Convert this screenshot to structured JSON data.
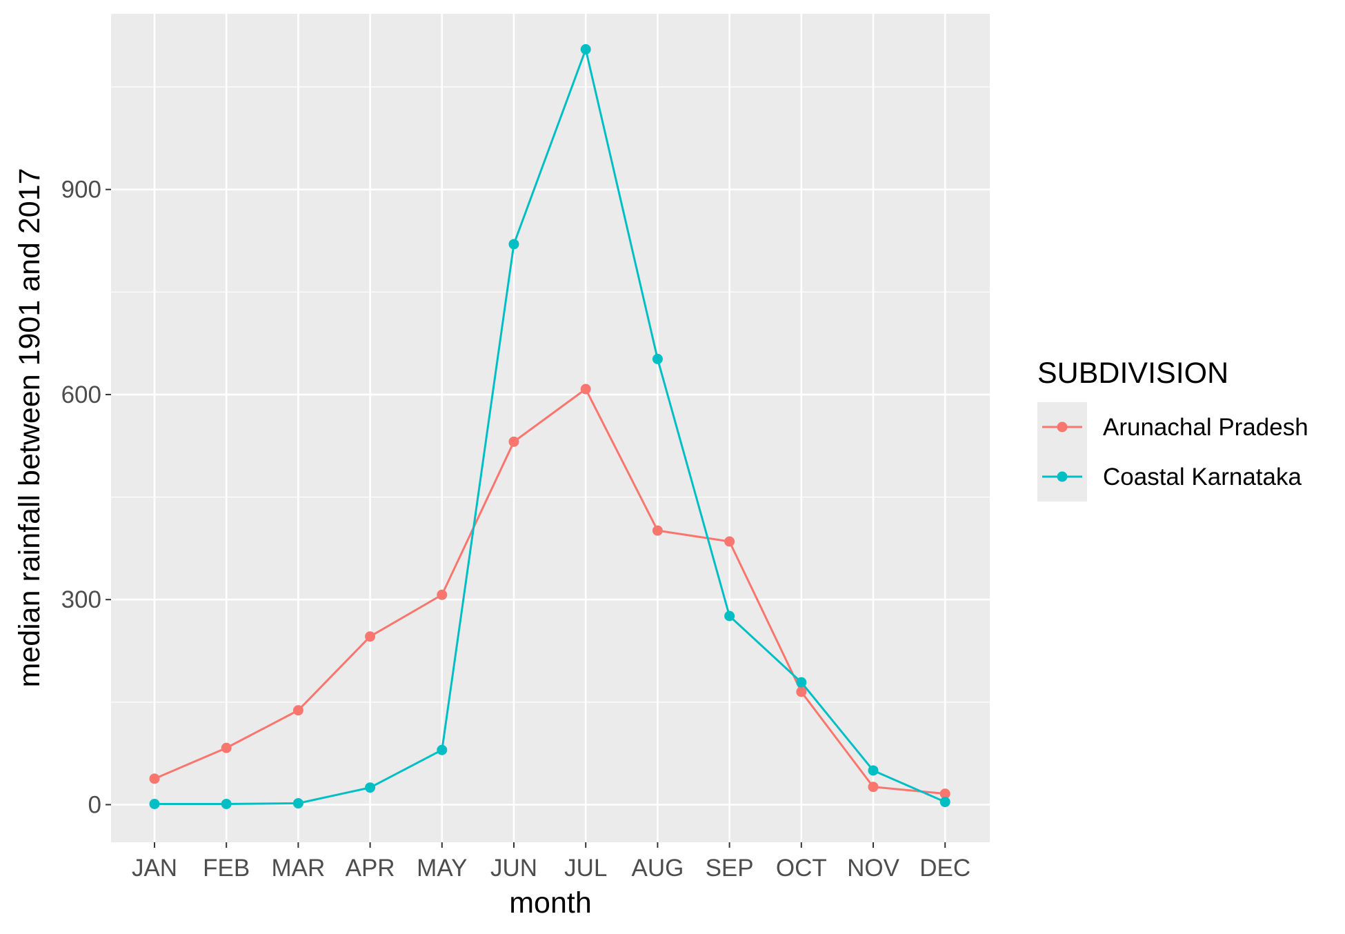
{
  "chart_data": {
    "type": "line",
    "title": "",
    "xlabel": "month",
    "ylabel": "median rainfall between 1901 and 2017",
    "categories": [
      "JAN",
      "FEB",
      "MAR",
      "APR",
      "MAY",
      "JUN",
      "JUL",
      "AUG",
      "SEP",
      "OCT",
      "NOV",
      "DEC"
    ],
    "yticks": [
      0,
      300,
      600,
      900
    ],
    "ylim": [
      -55,
      1157
    ],
    "grid": true,
    "legend": {
      "title": "SUBDIVISION",
      "placement": "right"
    },
    "series": [
      {
        "name": "Arunachal Pradesh",
        "color": "#F8766D",
        "values": [
          38,
          83,
          138,
          246,
          307,
          531,
          608,
          401,
          385,
          165,
          26,
          16
        ]
      },
      {
        "name": "Coastal Karnataka",
        "color": "#00BFC4",
        "values": [
          1,
          1,
          2,
          25,
          80,
          820,
          1105,
          652,
          276,
          179,
          50,
          4
        ]
      }
    ]
  }
}
